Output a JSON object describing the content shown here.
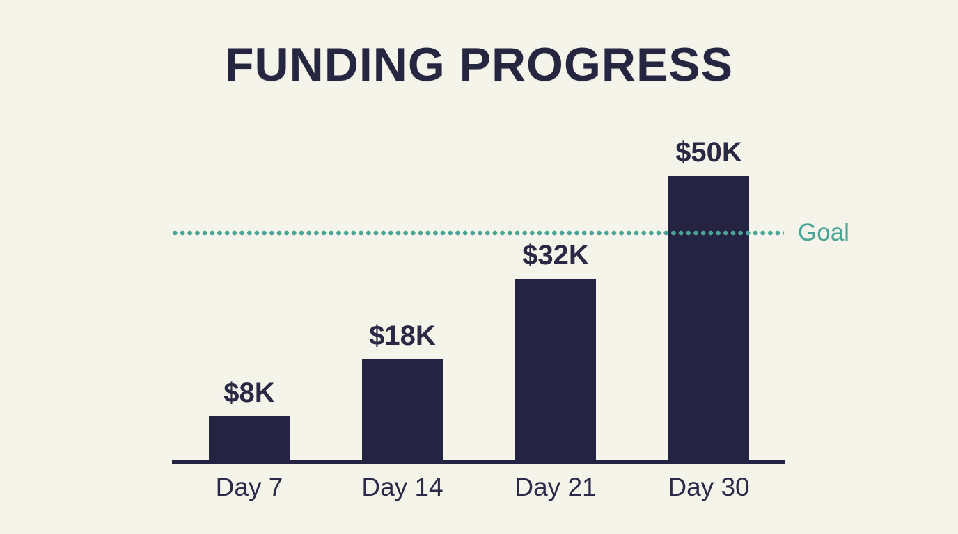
{
  "title": "FUNDING PROGRESS",
  "colors": {
    "background": "#f5f4ea",
    "bar": "#242342",
    "text": "#2a2945",
    "goal_accent": "#4aa496"
  },
  "chart_data": {
    "type": "bar",
    "title": "FUNDING PROGRESS",
    "categories": [
      "Day 7",
      "Day 14",
      "Day 21",
      "Day 30"
    ],
    "values": [
      8,
      18,
      32,
      50
    ],
    "value_labels": [
      "$8K",
      "$18K",
      "$32K",
      "$50K"
    ],
    "unit": "K (thousands of dollars)",
    "ylim": [
      0,
      55
    ],
    "grid": false,
    "legend": false,
    "goal_line": {
      "label": "Goal",
      "value": 40,
      "style": "dotted",
      "position": "right-of-line"
    }
  }
}
